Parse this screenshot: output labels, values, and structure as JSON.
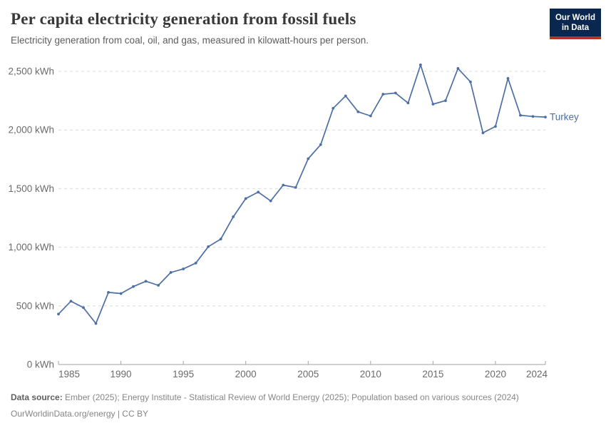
{
  "header": {
    "title": "Per capita electricity generation from fossil fuels",
    "subtitle": "Electricity generation from coal, oil, and gas, measured in kilowatt-hours per person.",
    "logo": {
      "line1": "Our World",
      "line2": "in Data"
    }
  },
  "chart_data": {
    "type": "line",
    "title": "Per capita electricity generation from fossil fuels",
    "xlabel": "",
    "ylabel": "kilowatt-hours per person",
    "xlim": [
      1985,
      2024
    ],
    "ylim": [
      0,
      2500
    ],
    "grid": "horizontal-dashed",
    "legend_position": "line-end-label",
    "x_ticks": [
      1985,
      1990,
      1995,
      2000,
      2005,
      2010,
      2015,
      2020,
      2024
    ],
    "y_ticks": [
      0,
      500,
      1000,
      1500,
      2000,
      2500
    ],
    "y_tick_suffix": " kWh",
    "series": [
      {
        "name": "Turkey",
        "color": "#4C6FA5",
        "x": [
          1985,
          1986,
          1987,
          1988,
          1989,
          1990,
          1991,
          1992,
          1993,
          1994,
          1995,
          1996,
          1997,
          1998,
          1999,
          2000,
          2001,
          2002,
          2003,
          2004,
          2005,
          2006,
          2007,
          2008,
          2009,
          2010,
          2011,
          2012,
          2013,
          2014,
          2015,
          2016,
          2017,
          2018,
          2019,
          2020,
          2021,
          2022,
          2023,
          2024
        ],
        "values": [
          430,
          540,
          485,
          350,
          615,
          605,
          665,
          710,
          675,
          785,
          815,
          865,
          1005,
          1070,
          1260,
          1415,
          1470,
          1395,
          1530,
          1510,
          1755,
          1875,
          2185,
          2290,
          2155,
          2120,
          2305,
          2315,
          2230,
          2555,
          2220,
          2250,
          2525,
          2410,
          1975,
          2030,
          2440,
          2125,
          2115,
          2110
        ]
      }
    ]
  },
  "footer": {
    "source_label": "Data source:",
    "source_text": " Ember (2025); Energy Institute - Statistical Review of World Energy (2025); Population based on various sources (2024)",
    "license_line": "OurWorldinData.org/energy | CC BY"
  },
  "colors": {
    "line": "#4C6FA5",
    "grid": "#dbdbdb",
    "axis": "#a3a3a3",
    "tick_label": "#6b6b6b",
    "logo_bg": "#0A2750",
    "logo_accent": "#B5322C"
  }
}
